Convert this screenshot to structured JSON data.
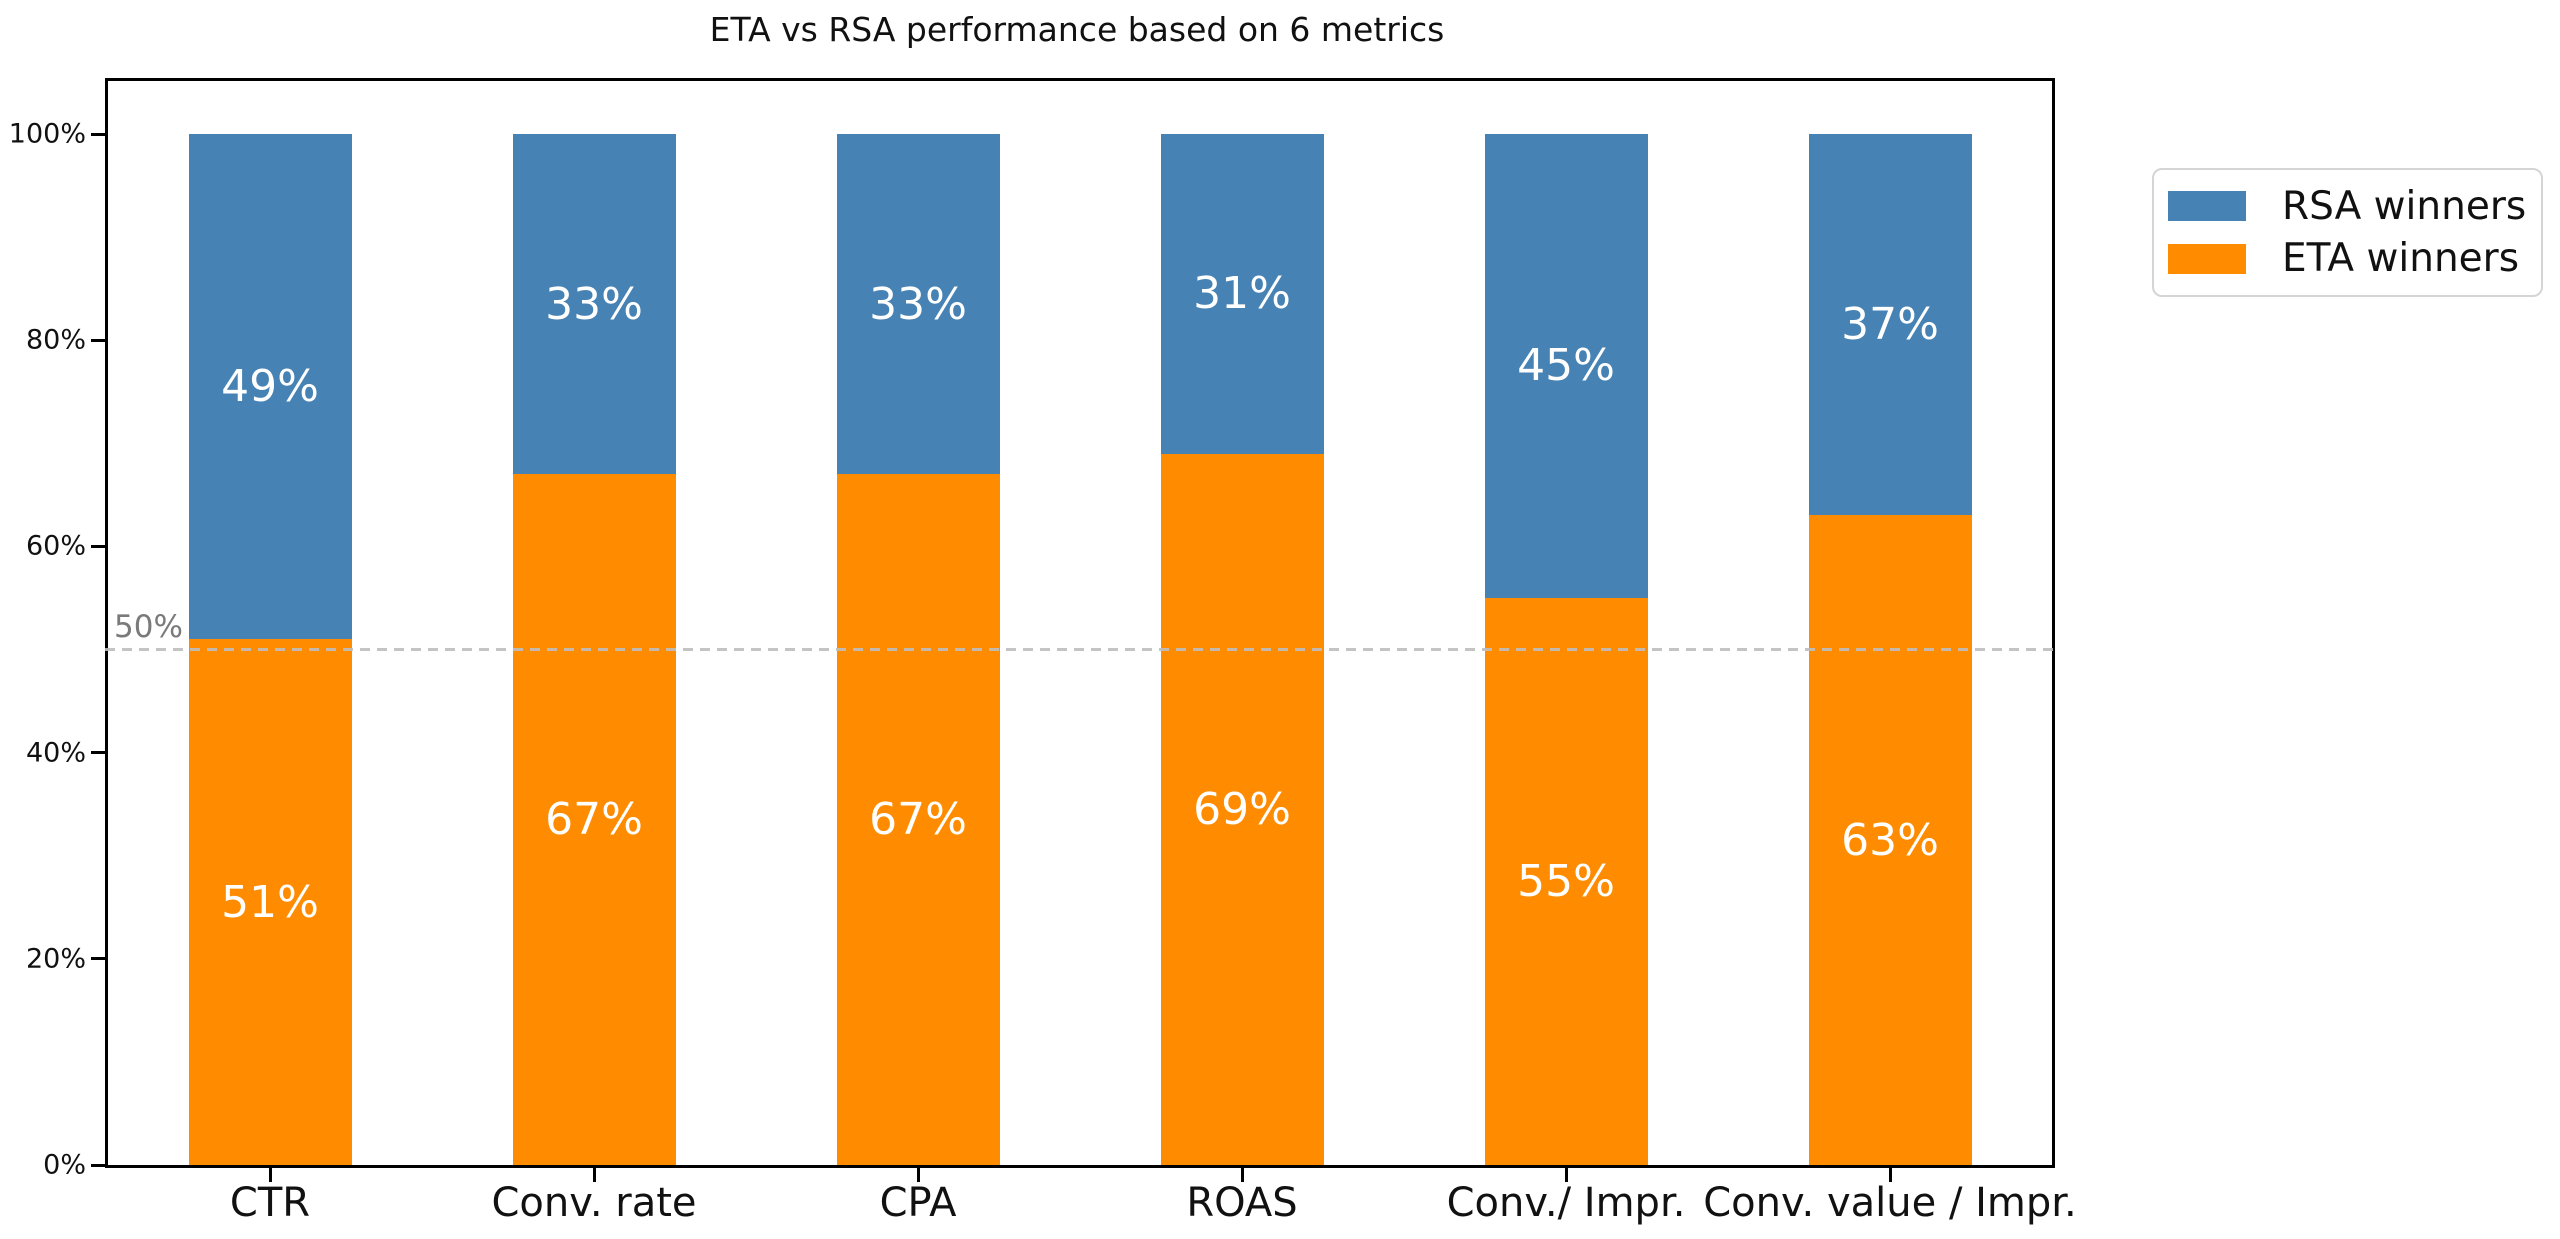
{
  "chart_data": {
    "type": "bar",
    "stacked": true,
    "title": "ETA vs RSA performance based on 6 metrics",
    "xlabel": "",
    "ylabel": "",
    "categories": [
      "CTR",
      "Conv. rate",
      "CPA",
      "ROAS",
      "Conv./ Impr.",
      "Conv. value / Impr."
    ],
    "series": [
      {
        "name": "ETA winners",
        "color": "#FF8C00",
        "values": [
          51,
          67,
          67,
          69,
          55,
          63
        ],
        "data_labels": [
          "51%",
          "67%",
          "67%",
          "69%",
          "55%",
          "63%"
        ]
      },
      {
        "name": "RSA winners",
        "color": "#4682B4",
        "values": [
          49,
          33,
          33,
          31,
          45,
          37
        ],
        "data_labels": [
          "49%",
          "33%",
          "33%",
          "31%",
          "45%",
          "37%"
        ]
      }
    ],
    "bar_label_color": "#ffffff",
    "ylim": [
      0,
      105
    ],
    "yticks": [
      {
        "value": 0,
        "label": "0%"
      },
      {
        "value": 20,
        "label": "20%"
      },
      {
        "value": 40,
        "label": "40%"
      },
      {
        "value": 60,
        "label": "60%"
      },
      {
        "value": 80,
        "label": "80%"
      },
      {
        "value": 100,
        "label": "100%"
      }
    ],
    "reference_line": {
      "value": 50,
      "label": "50%",
      "style": "dashed",
      "color": "#bebebe"
    },
    "grid": false,
    "legend_position": "outside-upper-right"
  },
  "legend": {
    "items": [
      {
        "label": "RSA winners",
        "color": "#4682B4"
      },
      {
        "label": "ETA winners",
        "color": "#FF8C00"
      }
    ]
  }
}
